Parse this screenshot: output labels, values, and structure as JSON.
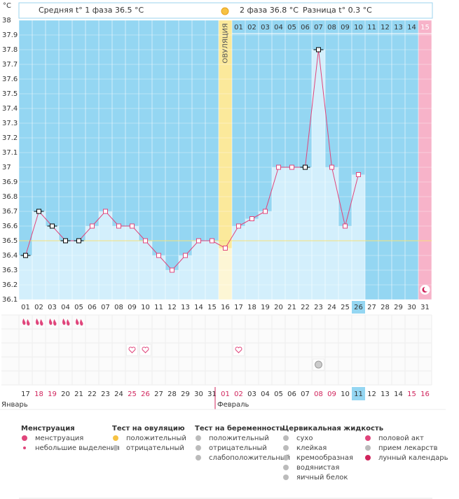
{
  "header": {
    "phase1": "Средняя t° 1 фаза 36.5 °C",
    "phase2": "2 фаза 36.8 °C",
    "difference": "Разница t° 0.3 °C"
  },
  "chart_data": {
    "type": "line",
    "y_unit": "°C",
    "ovulation_label": "ОВУЛЯЦИЯ",
    "categories": [
      "01",
      "02",
      "03",
      "04",
      "05",
      "06",
      "07",
      "08",
      "09",
      "10",
      "11",
      "12",
      "13",
      "14",
      "15",
      "16",
      "17",
      "18",
      "19",
      "20",
      "21",
      "22",
      "23",
      "24",
      "25",
      "26",
      "27",
      "28",
      "29",
      "30",
      "31"
    ],
    "values": [
      36.4,
      36.7,
      36.6,
      36.5,
      36.5,
      36.6,
      36.7,
      36.6,
      36.6,
      36.5,
      36.4,
      36.3,
      36.4,
      36.5,
      36.5,
      36.45,
      36.6,
      36.65,
      36.7,
      37.0,
      37.0,
      37.0,
      37.8,
      37.0,
      36.6,
      36.95,
      null,
      null,
      null,
      null,
      null
    ],
    "marker_colors": [
      "#000",
      "#000",
      "#000",
      "#000",
      "#000",
      "#e0457b",
      "#e0457b",
      "#e0457b",
      "#e0457b",
      "#e0457b",
      "#e0457b",
      "#e0457b",
      "#e0457b",
      "#e0457b",
      "#e0457b",
      "#e0457b",
      "#e0457b",
      "#e0457b",
      "#e0457b",
      "#e0457b",
      "#e0457b",
      "#000",
      "#000",
      "#e0457b",
      "#e0457b",
      "#e0457b",
      null,
      null,
      null,
      null,
      null
    ],
    "luteal_days": [
      null,
      null,
      null,
      null,
      null,
      null,
      null,
      null,
      null,
      null,
      null,
      null,
      null,
      null,
      null,
      null,
      "01",
      "02",
      "03",
      "04",
      "05",
      "06",
      "07",
      "08",
      "09",
      "10",
      "11",
      "12",
      "13",
      "14",
      "15"
    ],
    "dates": [
      "17",
      "18",
      "19",
      "20",
      "21",
      "22",
      "23",
      "24",
      "25",
      "26",
      "27",
      "28",
      "29",
      "30",
      "31",
      "01",
      "02",
      "03",
      "04",
      "05",
      "06",
      "07",
      "08",
      "09",
      "10",
      "11",
      "12",
      "13",
      "14",
      "15",
      "16"
    ],
    "date_colors": [
      "#333",
      "#d0245c",
      "#d0245c",
      "#333",
      "#333",
      "#333",
      "#333",
      "#333",
      "#d0245c",
      "#d0245c",
      "#333",
      "#333",
      "#333",
      "#333",
      "#333",
      "#d0245c",
      "#d0245c",
      "#333",
      "#333",
      "#333",
      "#333",
      "#333",
      "#d0245c",
      "#d0245c",
      "#333",
      "#333",
      "#333",
      "#333",
      "#333",
      "#d0245c",
      "#d0245c"
    ],
    "months": [
      "Январь",
      "Февраль"
    ],
    "ovulation_day": "16",
    "today": "26",
    "cycle_end": "31",
    "color": "#e0457b",
    "coverline": 36.5,
    "ylim": [
      36.1,
      38
    ],
    "yticks": [
      36.1,
      36.2,
      36.3,
      36.4,
      36.5,
      36.6,
      36.7,
      36.8,
      36.9,
      37,
      37.1,
      37.2,
      37.3,
      37.4,
      37.5,
      37.6,
      37.7,
      37.8,
      37.9,
      38
    ],
    "events": {
      "menstruation": [
        "01",
        "02",
        "03",
        "04",
        "05"
      ],
      "intercourse": [
        "09",
        "10",
        "17"
      ],
      "medication": [
        "23"
      ],
      "moon": [
        "31"
      ]
    }
  },
  "legend": [
    {
      "title": "Менструация",
      "items": [
        "менструация",
        "небольшие выделения"
      ]
    },
    {
      "title": "Тест на овуляцию",
      "items": [
        "положительный",
        "отрицательный"
      ]
    },
    {
      "title": "Тест на беременность",
      "items": [
        "положительный",
        "отрицательный",
        "слабоположительный"
      ]
    },
    {
      "title": "Цервикальная жидкость",
      "items": [
        "сухо",
        "клейкая",
        "кремообразная",
        "водянистая",
        "яичный белок"
      ]
    },
    {
      "items": [
        "половой акт",
        "прием лекарств",
        "лунный календарь"
      ]
    }
  ]
}
